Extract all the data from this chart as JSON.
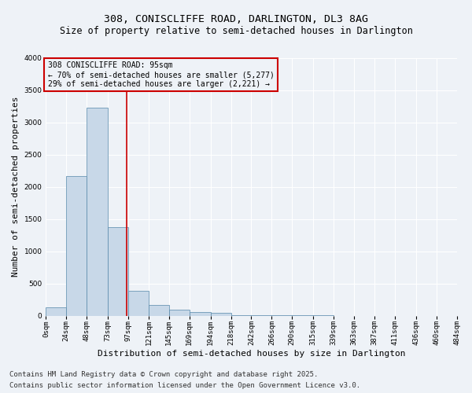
{
  "title1": "308, CONISCLIFFE ROAD, DARLINGTON, DL3 8AG",
  "title2": "Size of property relative to semi-detached houses in Darlington",
  "xlabel": "Distribution of semi-detached houses by size in Darlington",
  "ylabel": "Number of semi-detached properties",
  "footnote1": "Contains HM Land Registry data © Crown copyright and database right 2025.",
  "footnote2": "Contains public sector information licensed under the Open Government Licence v3.0.",
  "annotation_line1": "308 CONISCLIFFE ROAD: 95sqm",
  "annotation_line2": "← 70% of semi-detached houses are smaller (5,277)",
  "annotation_line3": "29% of semi-detached houses are larger (2,221) →",
  "property_size": 95,
  "bar_edges": [
    0,
    24,
    48,
    73,
    97,
    121,
    145,
    169,
    194,
    218,
    242,
    266,
    290,
    315,
    339,
    363,
    387,
    411,
    436,
    460,
    484
  ],
  "bar_heights": [
    130,
    2170,
    3230,
    1370,
    390,
    165,
    95,
    55,
    45,
    10,
    5,
    5,
    3,
    2,
    1,
    1,
    0,
    0,
    0,
    0
  ],
  "bar_color": "#c8d8e8",
  "bar_edge_color": "#5588aa",
  "vline_color": "#cc0000",
  "vline_x": 95,
  "annotation_box_color": "#cc0000",
  "ylim": [
    0,
    4000
  ],
  "yticks": [
    0,
    500,
    1000,
    1500,
    2000,
    2500,
    3000,
    3500,
    4000
  ],
  "bg_color": "#eef2f7",
  "grid_color": "#ffffff",
  "title_fontsize": 9.5,
  "subtitle_fontsize": 8.5,
  "tick_fontsize": 6.5,
  "label_fontsize": 8,
  "annotation_fontsize": 7,
  "footnote_fontsize": 6.5
}
